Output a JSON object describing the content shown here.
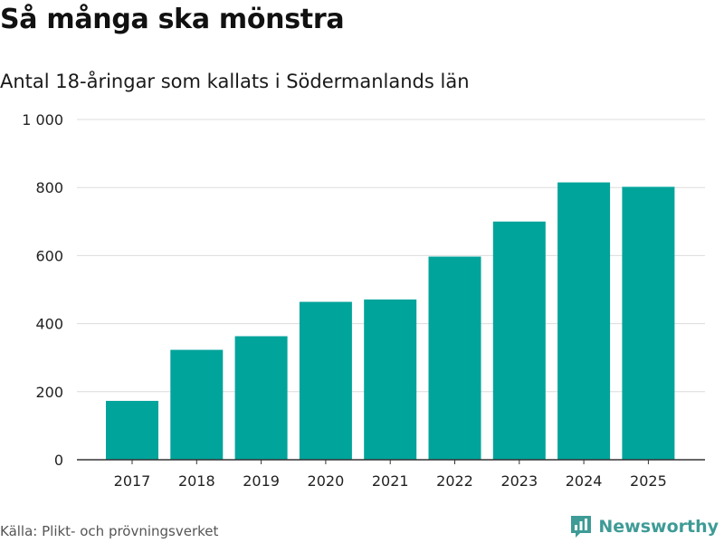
{
  "header": {
    "title": "Så många ska mönstra",
    "subtitle": "Antal 18-åringar som kallats i Södermanlands län"
  },
  "footer": {
    "source": "Källa: Plikt- och prövningsverket",
    "brand": "Newsworthy",
    "brand_icon": "bar-chart-icon"
  },
  "colors": {
    "bar": "#00a49b",
    "grid": "#dcdcdc",
    "axis": "#333333",
    "brand": "#3e9b96"
  },
  "chart_data": {
    "type": "bar",
    "title": "Så många ska mönstra",
    "subtitle": "Antal 18-åringar som kallats i Södermanlands län",
    "categories": [
      "2017",
      "2018",
      "2019",
      "2020",
      "2021",
      "2022",
      "2023",
      "2024",
      "2025"
    ],
    "values": [
      173,
      323,
      363,
      464,
      471,
      597,
      700,
      815,
      802
    ],
    "ylim": [
      0,
      1000
    ],
    "yticks": [
      0,
      200,
      400,
      600,
      800,
      1000
    ],
    "ytick_labels": [
      "0",
      "200",
      "400",
      "600",
      "800",
      "1 000"
    ],
    "xlabel": "",
    "ylabel": "",
    "grid": true,
    "legend": "none"
  }
}
